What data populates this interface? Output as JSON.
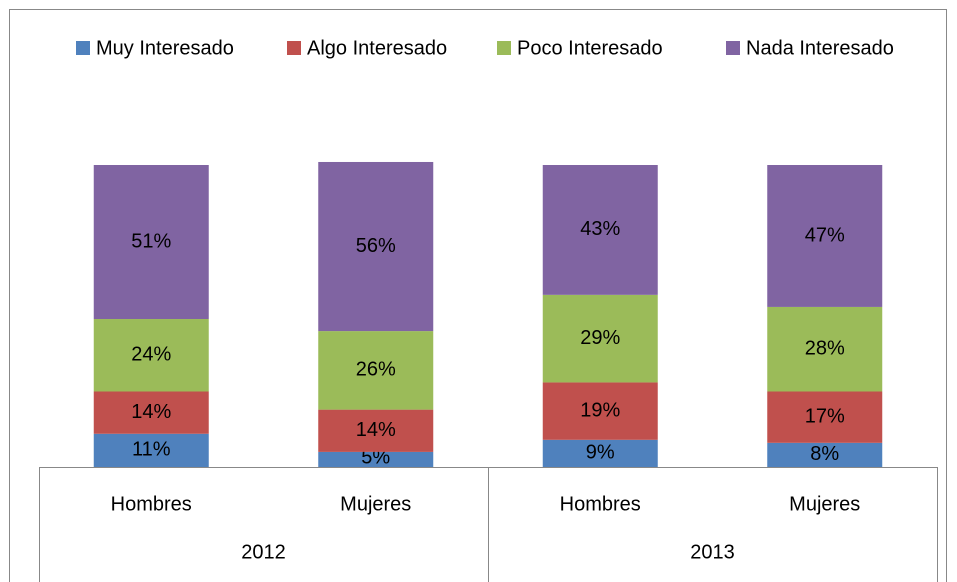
{
  "chart_data": {
    "type": "stacked_bar",
    "categories": [
      "Hombres",
      "Mujeres",
      "Hombres",
      "Mujeres"
    ],
    "category_groups": [
      "2012",
      "2013"
    ],
    "legend": "top",
    "series": [
      {
        "name": "Muy Interesado",
        "color": "#4f81bd",
        "values": [
          11,
          5,
          9,
          8
        ],
        "value_labels": [
          "11%",
          "5%",
          "9%",
          "8%"
        ]
      },
      {
        "name": "Algo Interesado",
        "color": "#c0504d",
        "values": [
          14,
          14,
          19,
          17
        ],
        "value_labels": [
          "14%",
          "14%",
          "19%",
          "17%"
        ]
      },
      {
        "name": "Poco Interesado",
        "color": "#9bbb59",
        "values": [
          24,
          26,
          29,
          28
        ],
        "value_labels": [
          "24%",
          "26%",
          "29%",
          "28%"
        ]
      },
      {
        "name": "Nada Interesado",
        "color": "#8064a2",
        "values": [
          51,
          56,
          43,
          47
        ],
        "value_labels": [
          "51%",
          "56%",
          "43%",
          "47%"
        ]
      }
    ]
  }
}
